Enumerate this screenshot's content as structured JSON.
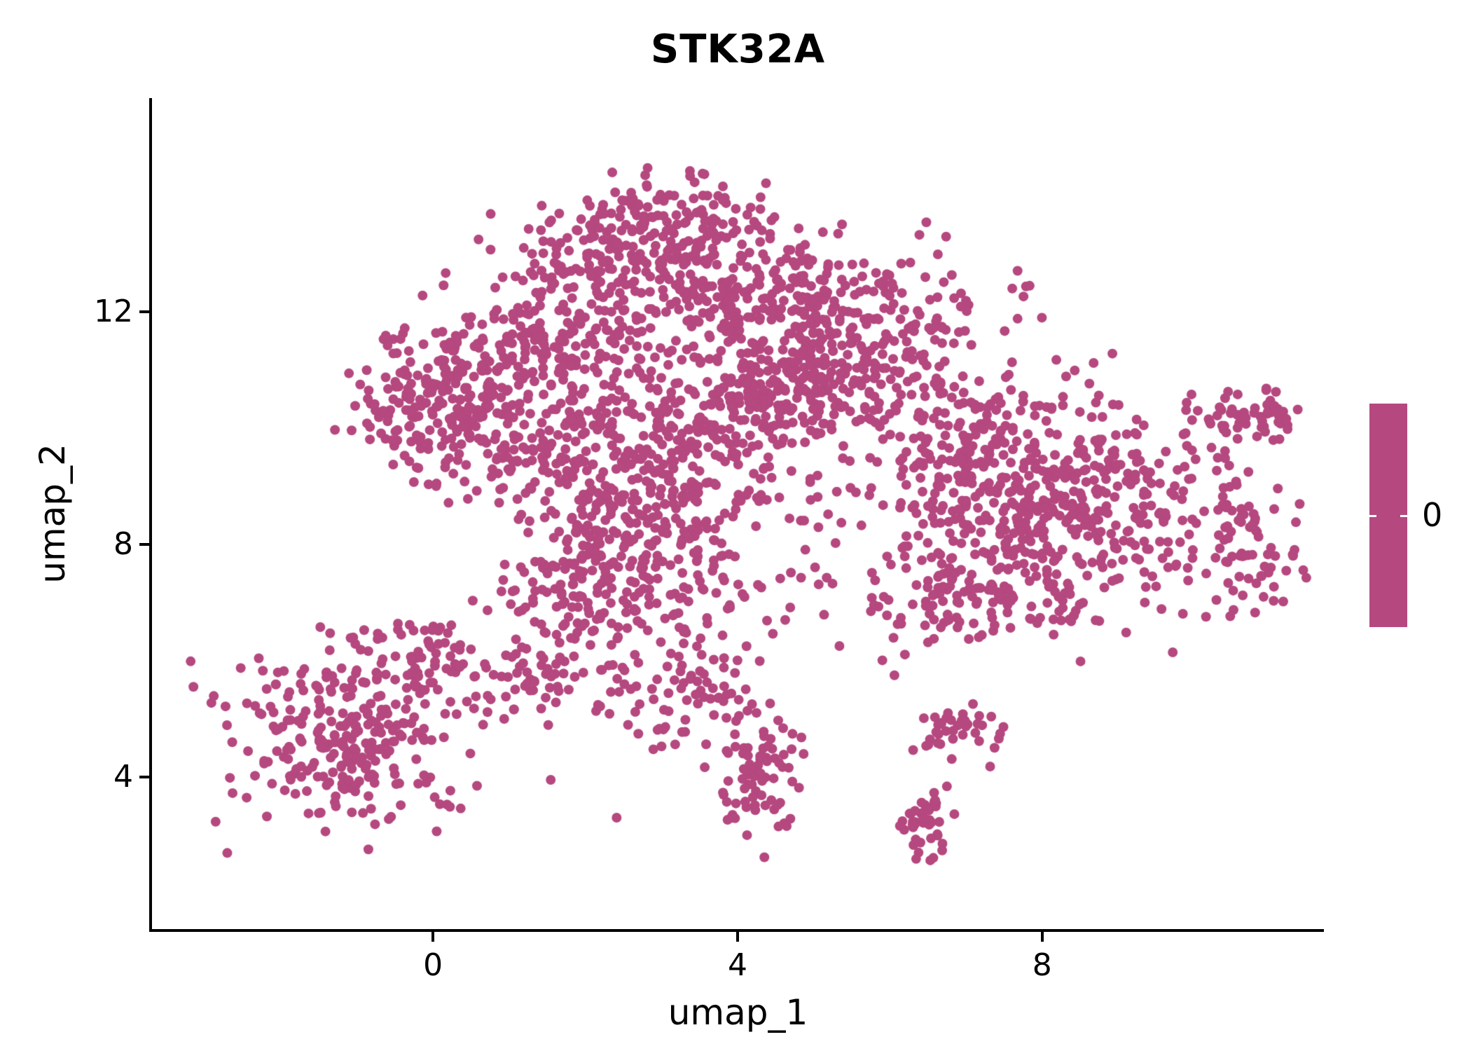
{
  "chart_data": {
    "type": "scatter",
    "title": "STK32A",
    "xlabel": "umap_1",
    "ylabel": "umap_2",
    "x_ticks": [
      {
        "value": 0,
        "label": "0"
      },
      {
        "value": 4,
        "label": "4"
      },
      {
        "value": 8,
        "label": "8"
      }
    ],
    "y_ticks": [
      {
        "value": 4,
        "label": "4"
      },
      {
        "value": 8,
        "label": "8"
      },
      {
        "value": 12,
        "label": "12"
      }
    ],
    "x_domain": [
      -3.69,
      11.7
    ],
    "y_domain": [
      1.38,
      15.68
    ],
    "grid": false,
    "point_color": "#B5487F",
    "point_radius": 7,
    "seed": 42,
    "legend": {
      "label": "0",
      "color": "#B5487F",
      "position": "right"
    },
    "clusters_format": [
      "center_x",
      "center_y",
      "sd_x",
      "sd_y",
      "n_points"
    ],
    "clusters": [
      [
        3.0,
        13.5,
        0.75,
        0.45,
        150
      ],
      [
        2.3,
        12.5,
        1.0,
        0.6,
        200
      ],
      [
        4.3,
        12.3,
        0.9,
        0.6,
        200
      ],
      [
        1.3,
        11.2,
        0.8,
        0.5,
        150
      ],
      [
        -0.1,
        10.5,
        0.5,
        0.6,
        140
      ],
      [
        0.9,
        9.9,
        0.6,
        0.5,
        110
      ],
      [
        4.6,
        10.7,
        0.7,
        0.6,
        230
      ],
      [
        3.4,
        10.0,
        0.8,
        0.7,
        170
      ],
      [
        2.2,
        9.0,
        0.7,
        0.8,
        160
      ],
      [
        5.9,
        11.6,
        0.8,
        0.7,
        150
      ],
      [
        2.9,
        7.8,
        0.8,
        0.8,
        180
      ],
      [
        1.8,
        7.0,
        0.5,
        0.6,
        80
      ],
      [
        8.3,
        8.7,
        1.1,
        0.85,
        430
      ],
      [
        6.9,
        9.8,
        0.6,
        0.6,
        120
      ],
      [
        7.2,
        7.1,
        0.8,
        0.45,
        110
      ],
      [
        10.7,
        10.15,
        0.35,
        0.25,
        60
      ],
      [
        10.8,
        7.9,
        0.35,
        0.5,
        60
      ],
      [
        -1.2,
        4.7,
        0.8,
        0.75,
        280
      ],
      [
        -0.2,
        6.1,
        0.45,
        0.35,
        60
      ],
      [
        1.4,
        5.7,
        0.4,
        0.35,
        50
      ],
      [
        3.2,
        5.4,
        0.55,
        0.45,
        70
      ],
      [
        4.3,
        4.0,
        0.3,
        0.65,
        80
      ],
      [
        6.5,
        3.15,
        0.22,
        0.3,
        45
      ],
      [
        6.95,
        4.75,
        0.28,
        0.22,
        40
      ],
      [
        4.8,
        8.6,
        2.0,
        1.6,
        150
      ]
    ]
  }
}
